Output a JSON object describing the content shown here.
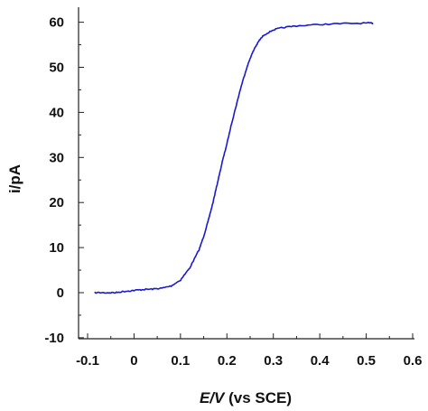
{
  "chart_data": {
    "type": "line",
    "xlabel_italic": "E/V",
    "xlabel_rest": " (vs SCE)",
    "ylabel": "i/pA",
    "xlim": [
      -0.1,
      0.6
    ],
    "ylim": [
      -10,
      65
    ],
    "x_ticks": [
      -0.1,
      0,
      0.1,
      0.2,
      0.3,
      0.4,
      0.5,
      0.6
    ],
    "x_tick_labels": [
      "-0.1",
      "0",
      "0.1",
      "0.2",
      "0.3",
      "0.4",
      "0.5",
      "0.6"
    ],
    "y_ticks": [
      -10,
      0,
      10,
      20,
      30,
      40,
      50,
      60
    ],
    "y_tick_labels": [
      "-10",
      "0",
      "10",
      "20",
      "30",
      "40",
      "50",
      "60"
    ],
    "grid": false,
    "line_color": "#1a1ad0",
    "series": [
      {
        "x": [
          -0.085,
          -0.06,
          -0.04,
          -0.02,
          0.0,
          0.02,
          0.04,
          0.06,
          0.08,
          0.1,
          0.12,
          0.14,
          0.15,
          0.16,
          0.17,
          0.18,
          0.19,
          0.2,
          0.21,
          0.22,
          0.23,
          0.24,
          0.25,
          0.26,
          0.27,
          0.28,
          0.3,
          0.32,
          0.35,
          0.4,
          0.45,
          0.5,
          0.515
        ],
        "y": [
          0,
          0,
          0,
          0.3,
          0.5,
          0.7,
          0.8,
          1.0,
          1.5,
          2.8,
          5.5,
          9.5,
          12.5,
          16,
          20,
          24.5,
          29,
          33,
          37.5,
          41.5,
          45.5,
          49,
          52,
          54.3,
          56,
          57.2,
          58.3,
          58.8,
          59.2,
          59.5,
          59.7,
          59.8,
          59.8
        ]
      }
    ]
  }
}
